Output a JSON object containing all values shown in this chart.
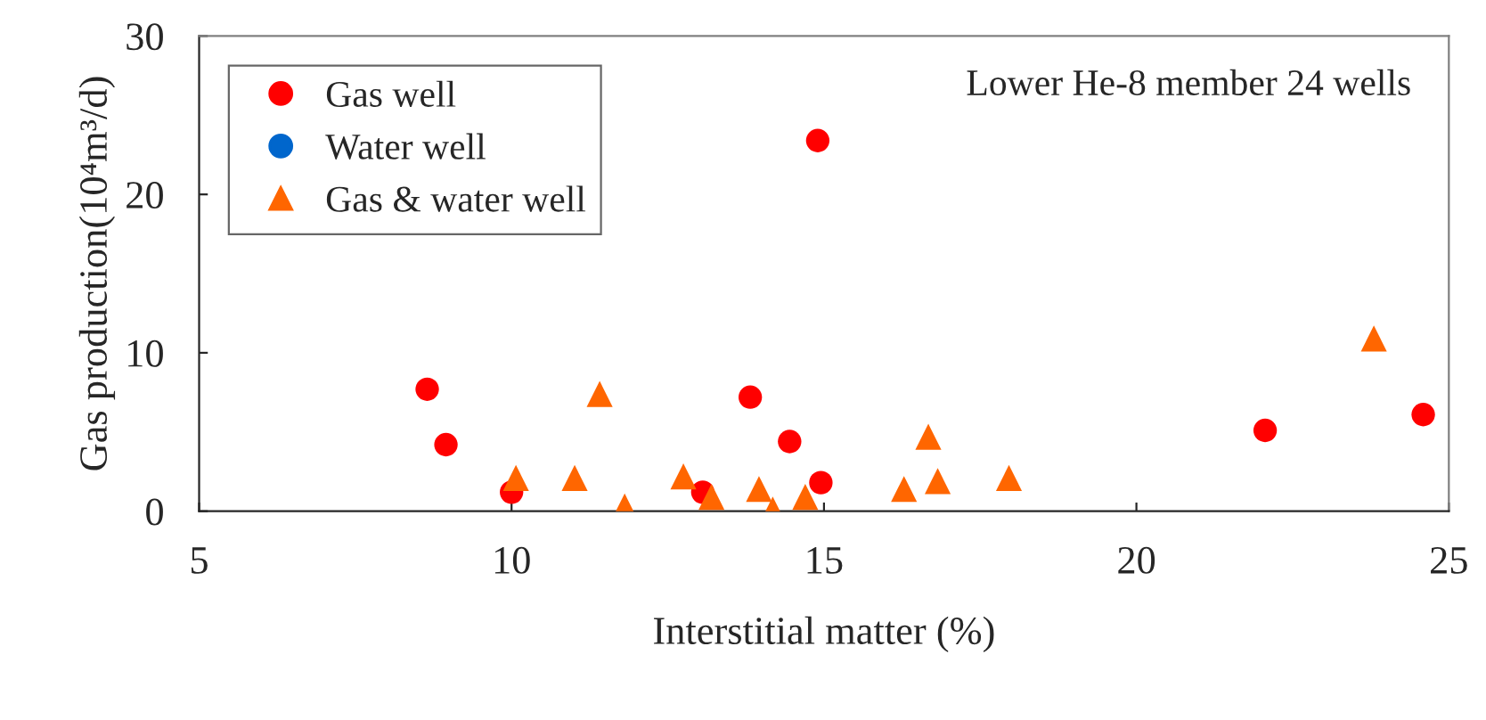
{
  "chart_data": {
    "type": "scatter",
    "xlabel": "Interstitial matter (%)",
    "ylabel": "Gas production(10⁴m³/d)",
    "xlim": [
      5,
      25
    ],
    "xticks": [
      5,
      10,
      15,
      20,
      25
    ],
    "ylim": [
      0,
      30
    ],
    "yticks": [
      0,
      10,
      20,
      30
    ],
    "grid": false,
    "legend": "top left",
    "annotations": [
      "Lower He-8 member 24 wells"
    ],
    "series": [
      {
        "name": "Gas well",
        "color": "#ff0000",
        "marker": "circle",
        "x": [
          8.65,
          8.95,
          10.0,
          14.9,
          13.82,
          13.06,
          14.45,
          14.95,
          22.06,
          24.59
        ],
        "values": [
          7.7,
          4.2,
          1.2,
          23.4,
          7.2,
          1.2,
          4.4,
          1.8,
          5.1,
          6.1
        ]
      },
      {
        "name": "Water well",
        "color": "#0066cc",
        "marker": "circle"
      },
      {
        "name": "Gas & water well",
        "color": "#ff6600",
        "marker": "triangle",
        "x": [
          10.07,
          11.01,
          11.41,
          11.81,
          12.75,
          13.2,
          13.96,
          14.18,
          14.7,
          16.28,
          16.67,
          16.82,
          17.96,
          23.8
        ],
        "values": [
          2.1,
          2.1,
          7.4,
          0.3,
          2.2,
          0.9,
          1.4,
          0.1,
          0.9,
          1.4,
          4.7,
          1.9,
          2.1,
          10.9
        ]
      }
    ]
  }
}
